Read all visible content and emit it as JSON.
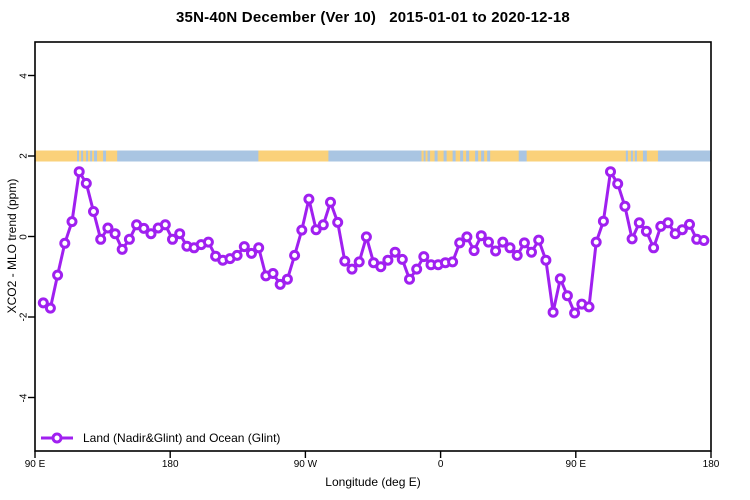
{
  "title": "35N-40N December (Ver 10)   2015-01-01 to 2020-12-18",
  "axes": {
    "x_label": "Longitude (deg E)",
    "y_label": "XCO2 - MLO trend (ppm)",
    "x_ticks": [
      {
        "lon": 90,
        "label": "90 E"
      },
      {
        "lon": 180,
        "label": "180"
      },
      {
        "lon": 270,
        "label": "90 W"
      },
      {
        "lon": 360,
        "label": "0"
      },
      {
        "lon": 450,
        "label": "90 E"
      },
      {
        "lon": 540,
        "label": "180"
      }
    ],
    "y_ticks": [
      {
        "v": 4,
        "label": "4"
      },
      {
        "v": 2,
        "label": "2"
      },
      {
        "v": 0,
        "label": "0"
      },
      {
        "v": -2,
        "label": "-2"
      },
      {
        "v": -4,
        "label": "-4"
      }
    ]
  },
  "legend": {
    "label": "Land (Nadir&Glint) and Ocean (Glint)"
  },
  "colors": {
    "line": "#A020F0",
    "marker_fill": "#ffffff",
    "land_band": "#FAD17A",
    "ocean_band": "#A9C5E2",
    "axis": "#000000"
  },
  "chart_data": {
    "type": "line",
    "title": "35N-40N December (Ver 10)   2015-01-01 to 2020-12-18",
    "xlabel": "Longitude (deg E)",
    "ylabel": "XCO2 - MLO trend (ppm)",
    "xlim": [
      90,
      540
    ],
    "ylim": [
      -5,
      5
    ],
    "grid": false,
    "legend_position": "bottom-left",
    "series_name": "Land (Nadir&Glint) and Ocean (Glint)",
    "lon_start": 95.5,
    "lon_step": 4.78,
    "values": [
      -1.65,
      -1.78,
      -0.96,
      -0.17,
      0.37,
      1.61,
      1.32,
      0.62,
      -0.07,
      0.21,
      0.07,
      -0.32,
      -0.07,
      0.29,
      0.2,
      0.07,
      0.21,
      0.29,
      -0.07,
      0.07,
      -0.24,
      -0.28,
      -0.2,
      -0.14,
      -0.49,
      -0.59,
      -0.55,
      -0.47,
      -0.25,
      -0.42,
      -0.28,
      -0.98,
      -0.92,
      -1.19,
      -1.06,
      -0.47,
      0.16,
      0.93,
      0.17,
      0.29,
      0.85,
      0.35,
      -0.61,
      -0.81,
      -0.63,
      -0.01,
      -0.65,
      -0.75,
      -0.59,
      -0.39,
      -0.57,
      -1.06,
      -0.81,
      -0.5,
      -0.7,
      -0.7,
      -0.65,
      -0.63,
      -0.16,
      -0.01,
      -0.35,
      0.02,
      -0.14,
      -0.36,
      -0.14,
      -0.28,
      -0.47,
      -0.16,
      -0.39,
      -0.09,
      -0.59,
      -1.88,
      -1.05,
      -1.47,
      -1.9,
      -1.68,
      -1.75,
      -0.14,
      0.38,
      1.61,
      1.31,
      0.75,
      -0.06,
      0.34,
      0.13,
      -0.28,
      0.25,
      0.34,
      0.07,
      0.17,
      0.3,
      -0.07,
      -0.1
    ],
    "surface_band": {
      "band_value": 2,
      "ocean_range": [
        90,
        540
      ],
      "land_segments": [
        [
          90,
          118
        ],
        [
          119.3,
          120.7
        ],
        [
          122,
          124
        ],
        [
          125.3,
          126.7
        ],
        [
          128,
          129.3
        ],
        [
          131.3,
          135.3
        ],
        [
          137.3,
          144.7
        ],
        [
          238.7,
          285.3
        ],
        [
          347.3,
          348.7
        ],
        [
          350,
          351.3
        ],
        [
          353,
          356
        ],
        [
          358,
          362
        ],
        [
          364,
          368
        ],
        [
          370,
          373
        ],
        [
          375,
          377
        ],
        [
          379,
          383
        ],
        [
          385,
          387
        ],
        [
          389,
          391
        ],
        [
          393,
          412
        ],
        [
          417.3,
          483.3
        ],
        [
          484.7,
          486.7
        ],
        [
          488,
          489.3
        ],
        [
          490.7,
          494.7
        ],
        [
          497.3,
          504.7
        ]
      ]
    }
  }
}
